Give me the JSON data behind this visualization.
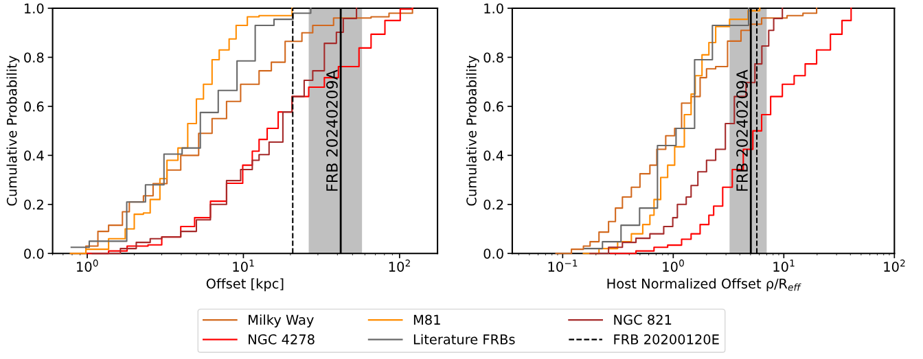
{
  "chart_data": [
    {
      "type": "step",
      "xlabel": "Offset [kpc]",
      "ylabel": "Cumulative Probability",
      "log": "x",
      "xlim": [
        0.6,
        175
      ],
      "ylim": [
        0,
        1
      ],
      "xticks": [
        {
          "value": 1,
          "label": "10$^{0}$"
        },
        {
          "value": 10,
          "label": "10$^{1}$"
        },
        {
          "value": 100,
          "label": "10$^{2}$"
        }
      ],
      "yticks": [
        {
          "value": 0,
          "label": "0.0"
        },
        {
          "value": 0.2,
          "label": "0.2"
        },
        {
          "value": 0.4,
          "label": "0.4"
        },
        {
          "value": 0.6,
          "label": "0.6"
        },
        {
          "value": 0.8,
          "label": "0.8"
        },
        {
          "value": 1,
          "label": "1.0"
        }
      ],
      "grid": false,
      "legend": "bottom",
      "series": [
        {
          "name": "Milky Way",
          "color": "#d2691e",
          "x": [
            0.79,
            0.98,
            1.17,
            1.37,
            1.68,
            1.86,
            2.29,
            2.64,
            3.24,
            3.97,
            5.17,
            6.3,
            7.8,
            9.6,
            12.6,
            15.1,
            18.5,
            23.7,
            27.8,
            37.8,
            65.7,
            85.6,
            121
          ],
          "values": [
            0.0,
            0.03,
            0.09,
            0.115,
            0.17,
            0.21,
            0.235,
            0.285,
            0.34,
            0.4,
            0.49,
            0.55,
            0.62,
            0.69,
            0.745,
            0.78,
            0.865,
            0.9,
            0.93,
            0.96,
            0.965,
            0.98,
            1.0
          ]
        },
        {
          "name": "NGC 4278",
          "color": "#ff0000",
          "x": [
            1.0,
            1.37,
            1.8,
            2.45,
            3.0,
            3.97,
            4.87,
            6.15,
            7.8,
            9.9,
            11.4,
            12.6,
            14.2,
            16.7,
            20.5,
            26.2,
            33,
            40.6,
            55,
            65.7,
            80.6,
            101,
            121
          ],
          "values": [
            0.0,
            0.01,
            0.03,
            0.035,
            0.067,
            0.11,
            0.146,
            0.213,
            0.286,
            0.36,
            0.417,
            0.465,
            0.51,
            0.577,
            0.64,
            0.678,
            0.717,
            0.762,
            0.838,
            0.894,
            0.95,
            0.997,
            1.0
          ]
        },
        {
          "name": "M81",
          "color": "#ff8c00",
          "x": [
            0.78,
            0.98,
            1.37,
            1.75,
            2.0,
            2.29,
            2.53,
            2.92,
            3.24,
            3.81,
            4.4,
            5.0,
            5.55,
            6.3,
            7.0,
            8.1,
            8.98,
            10.6,
            12.6,
            20.5
          ],
          "values": [
            0.0,
            0.017,
            0.06,
            0.1,
            0.16,
            0.165,
            0.22,
            0.305,
            0.38,
            0.43,
            0.53,
            0.63,
            0.69,
            0.79,
            0.83,
            0.875,
            0.93,
            0.965,
            0.97,
            1.0
          ]
        },
        {
          "name": "Literature FRBs",
          "color": "#696969",
          "x": [
            0.79,
            1.03,
            1.79,
            2.36,
            3.1,
            4.05,
            5.3,
            6.9,
            9.1,
            11.9,
            15.7,
            20.8,
            27
          ],
          "values": [
            0.025,
            0.05,
            0.21,
            0.28,
            0.405,
            0.43,
            0.575,
            0.665,
            0.785,
            0.93,
            0.955,
            0.98,
            1.0
          ]
        },
        {
          "name": "NGC 821",
          "color": "#a52a2a",
          "x": [
            1.08,
            1.63,
            2.06,
            2.53,
            3.0,
            3.97,
            5.0,
            6.15,
            7.8,
            9.6,
            11.4,
            12.6,
            14.6,
            17.9,
            20.5,
            24.5,
            27.8,
            33,
            39.4,
            43.6,
            53
          ],
          "values": [
            0.0,
            0.02,
            0.045,
            0.06,
            0.067,
            0.09,
            0.137,
            0.2,
            0.297,
            0.342,
            0.38,
            0.403,
            0.454,
            0.577,
            0.64,
            0.706,
            0.745,
            0.857,
            0.902,
            0.958,
            1.0
          ]
        },
        {
          "name": "FRB 20200120E",
          "type": "line",
          "line_style": "dashed",
          "color": "#000000",
          "x": [
            20.7,
            20.7
          ],
          "values": [
            0,
            1
          ]
        }
      ],
      "ref_lines": [
        {
          "axis": "x",
          "value": 42,
          "label": "FRB 20240209A",
          "color": "#000000"
        }
      ],
      "bands": [
        {
          "axis": "x",
          "from": 26.2,
          "to": 57.5,
          "color": "#c0c0c0"
        }
      ]
    },
    {
      "type": "step",
      "xlabel": "Host Normalized Offset ρ/R$_{eff}$",
      "ylabel": "Cumulative Probability",
      "log": "x",
      "xlim": [
        0.035,
        100
      ],
      "ylim": [
        0,
        1
      ],
      "xticks": [
        {
          "value": 0.1,
          "label": "10$^{−1}$"
        },
        {
          "value": 1,
          "label": "10$^{0}$"
        },
        {
          "value": 10,
          "label": "10$^{1}$"
        },
        {
          "value": 100,
          "label": "10$^{2}$"
        }
      ],
      "yticks": [
        {
          "value": 0,
          "label": "0.0"
        },
        {
          "value": 0.2,
          "label": "0.2"
        },
        {
          "value": 0.4,
          "label": "0.4"
        },
        {
          "value": 0.6,
          "label": "0.6"
        },
        {
          "value": 0.8,
          "label": "0.8"
        },
        {
          "value": 1,
          "label": "1.0"
        }
      ],
      "grid": false,
      "series": [
        {
          "name": "Milky Way",
          "color": "#d2691e",
          "x": [
            0.087,
            0.12,
            0.154,
            0.177,
            0.213,
            0.26,
            0.3,
            0.347,
            0.418,
            0.5,
            0.615,
            0.71,
            0.855,
            1.03,
            1.19,
            1.45,
            1.75,
            2.0,
            2.42,
            3.1,
            4.1,
            4.97,
            6.3,
            10.7,
            14.9,
            19.8
          ],
          "values": [
            0.0,
            0.017,
            0.03,
            0.048,
            0.087,
            0.13,
            0.185,
            0.23,
            0.27,
            0.325,
            0.36,
            0.425,
            0.48,
            0.51,
            0.613,
            0.64,
            0.717,
            0.753,
            0.762,
            0.866,
            0.91,
            0.935,
            0.96,
            0.97,
            0.98,
            1.0
          ]
        },
        {
          "name": "NGC 4278",
          "color": "#ff0000",
          "x": [
            0.27,
            0.46,
            0.67,
            0.89,
            1.19,
            1.45,
            1.75,
            2.1,
            2.32,
            2.8,
            3.42,
            4.3,
            5.25,
            6.3,
            7.6,
            9.7,
            12.4,
            15.6,
            19.8,
            26.4,
            33.6,
            40.6
          ],
          "values": [
            0.0,
            0.01,
            0.025,
            0.034,
            0.058,
            0.08,
            0.118,
            0.156,
            0.193,
            0.27,
            0.342,
            0.425,
            0.5,
            0.566,
            0.64,
            0.69,
            0.725,
            0.773,
            0.83,
            0.894,
            0.95,
            1.0
          ]
        },
        {
          "name": "M81",
          "color": "#ff8c00",
          "x": [
            0.154,
            0.213,
            0.314,
            0.418,
            0.53,
            0.615,
            0.67,
            0.77,
            0.89,
            1.03,
            1.26,
            1.45,
            1.58,
            1.82,
            2.1,
            2.42,
            3.23,
            4.75,
            6.06
          ],
          "values": [
            0.0,
            0.02,
            0.048,
            0.08,
            0.118,
            0.156,
            0.22,
            0.31,
            0.36,
            0.435,
            0.566,
            0.65,
            0.725,
            0.81,
            0.86,
            0.925,
            0.955,
            0.99,
            1.0
          ]
        },
        {
          "name": "Literature FRBs",
          "color": "#696969",
          "x": [
            0.158,
            0.229,
            0.337,
            0.496,
            0.72,
            1.06,
            1.56,
            2.26,
            4.8
          ],
          "values": [
            0.02,
            0.048,
            0.115,
            0.185,
            0.44,
            0.51,
            0.79,
            0.93,
            1.0
          ]
        },
        {
          "name": "NGC 821",
          "color": "#a52a2a",
          "x": [
            0.177,
            0.26,
            0.347,
            0.46,
            0.615,
            0.82,
            0.99,
            1.09,
            1.31,
            1.45,
            1.67,
            2.0,
            2.42,
            2.96,
            3.57,
            4.55,
            5.48,
            6.33,
            7.3,
            8.1,
            9.7
          ],
          "values": [
            0.0,
            0.025,
            0.045,
            0.062,
            0.08,
            0.11,
            0.146,
            0.2,
            0.23,
            0.277,
            0.333,
            0.38,
            0.425,
            0.53,
            0.64,
            0.697,
            0.773,
            0.846,
            0.91,
            0.958,
            1.0
          ]
        },
        {
          "name": "FRB 20200120E",
          "type": "line",
          "line_style": "dashed",
          "color": "#000000",
          "x": [
            5.7,
            5.7
          ],
          "values": [
            0,
            1
          ]
        }
      ],
      "ref_lines": [
        {
          "axis": "x",
          "value": 5.03,
          "label": "FRB 20240209A",
          "color": "#000000"
        }
      ],
      "bands": [
        {
          "axis": "x",
          "from": 3.23,
          "to": 7.0,
          "color": "#c0c0c0"
        }
      ]
    }
  ]
}
